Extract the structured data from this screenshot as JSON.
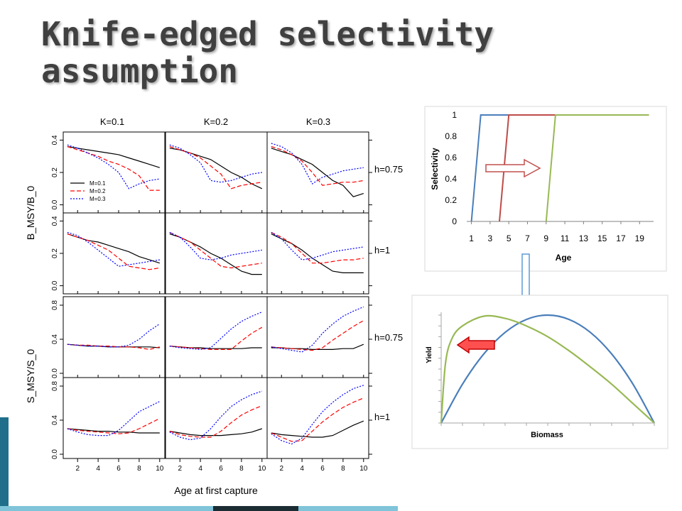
{
  "slide": {
    "title": "Knife-edged selectivity\nassumption",
    "colors": {
      "title": "#404040",
      "accent_left_bar": "#1f6f8b",
      "accent_bottom_bar": "#7fc4d8"
    }
  },
  "chart_data": [
    {
      "type": "line",
      "name": "panel_grid",
      "column_labels": [
        "K=0.1",
        "K=0.2",
        "K=0.3"
      ],
      "row_labels": [
        "h=0.75",
        "h=1",
        "h=0.75",
        "h=1"
      ],
      "ylabel_top": "B_MSY/B_0",
      "ylabel_bottom": "S_MSY/S_0",
      "xlabel": "Age at first capture",
      "x_ticks": [
        2,
        4,
        6,
        8,
        10
      ],
      "y_ticks_top": [
        "0.0",
        "0.2",
        "0.4"
      ],
      "y_ticks_bottom": [
        "0.0",
        "0.4",
        "0.8"
      ],
      "legend": [
        {
          "label": "M=0.1",
          "color": "#000000",
          "dash": "solid"
        },
        {
          "label": "M=0.2",
          "color": "#ff0000",
          "dash": "dashed"
        },
        {
          "label": "M=0.3",
          "color": "#0000ff",
          "dash": "dotted"
        }
      ],
      "x": [
        1,
        2,
        3,
        4,
        5,
        6,
        7,
        8,
        9,
        10
      ],
      "panels": [
        [
          {
            "ylim": [
              -0.05,
              0.45
            ],
            "series": [
              [
                0.36,
                0.35,
                0.34,
                0.33,
                0.32,
                0.31,
                0.29,
                0.27,
                0.25,
                0.23
              ],
              [
                0.36,
                0.34,
                0.32,
                0.3,
                0.27,
                0.25,
                0.22,
                0.18,
                0.09,
                0.09
              ],
              [
                0.37,
                0.35,
                0.32,
                0.29,
                0.25,
                0.2,
                0.1,
                0.13,
                0.15,
                0.16
              ]
            ]
          },
          {
            "ylim": [
              -0.05,
              0.45
            ],
            "series": [
              [
                0.35,
                0.34,
                0.32,
                0.3,
                0.28,
                0.24,
                0.2,
                0.17,
                0.13,
                0.1
              ],
              [
                0.36,
                0.34,
                0.32,
                0.29,
                0.24,
                0.19,
                0.1,
                0.12,
                0.13,
                0.14
              ],
              [
                0.37,
                0.35,
                0.31,
                0.26,
                0.15,
                0.14,
                0.15,
                0.17,
                0.19,
                0.2
              ]
            ]
          },
          {
            "ylim": [
              -0.05,
              0.45
            ],
            "series": [
              [
                0.35,
                0.33,
                0.31,
                0.28,
                0.25,
                0.2,
                0.15,
                0.12,
                0.05,
                0.07
              ],
              [
                0.36,
                0.34,
                0.31,
                0.27,
                0.2,
                0.12,
                0.13,
                0.14,
                0.14,
                0.15
              ],
              [
                0.38,
                0.36,
                0.32,
                0.25,
                0.13,
                0.17,
                0.19,
                0.21,
                0.22,
                0.23
              ]
            ]
          }
        ],
        [
          {
            "ylim": [
              -0.05,
              0.45
            ],
            "series": [
              [
                0.32,
                0.3,
                0.28,
                0.27,
                0.25,
                0.23,
                0.21,
                0.18,
                0.16,
                0.14
              ],
              [
                0.32,
                0.3,
                0.28,
                0.25,
                0.22,
                0.17,
                0.12,
                0.11,
                0.1,
                0.11
              ],
              [
                0.33,
                0.31,
                0.27,
                0.22,
                0.17,
                0.12,
                0.13,
                0.14,
                0.15,
                0.16
              ]
            ]
          },
          {
            "ylim": [
              -0.05,
              0.45
            ],
            "series": [
              [
                0.32,
                0.3,
                0.27,
                0.24,
                0.2,
                0.17,
                0.13,
                0.09,
                0.07,
                0.07
              ],
              [
                0.33,
                0.3,
                0.27,
                0.22,
                0.17,
                0.12,
                0.11,
                0.12,
                0.13,
                0.14
              ],
              [
                0.33,
                0.3,
                0.24,
                0.17,
                0.16,
                0.17,
                0.19,
                0.2,
                0.21,
                0.22
              ]
            ]
          },
          {
            "ylim": [
              -0.05,
              0.45
            ],
            "series": [
              [
                0.32,
                0.29,
                0.26,
                0.22,
                0.17,
                0.13,
                0.09,
                0.08,
                0.08,
                0.08
              ],
              [
                0.33,
                0.3,
                0.26,
                0.2,
                0.14,
                0.14,
                0.15,
                0.16,
                0.16,
                0.17
              ],
              [
                0.33,
                0.29,
                0.22,
                0.16,
                0.17,
                0.19,
                0.21,
                0.22,
                0.23,
                0.24
              ]
            ]
          }
        ],
        [
          {
            "ylim": [
              -0.05,
              0.9
            ],
            "series": [
              [
                0.34,
                0.33,
                0.32,
                0.32,
                0.31,
                0.31,
                0.31,
                0.31,
                0.31,
                0.3
              ],
              [
                0.34,
                0.33,
                0.33,
                0.32,
                0.32,
                0.31,
                0.31,
                0.3,
                0.28,
                0.31
              ],
              [
                0.34,
                0.33,
                0.32,
                0.32,
                0.31,
                0.31,
                0.33,
                0.4,
                0.5,
                0.58
              ]
            ]
          },
          {
            "ylim": [
              -0.05,
              0.9
            ],
            "series": [
              [
                0.32,
                0.31,
                0.3,
                0.3,
                0.29,
                0.29,
                0.29,
                0.29,
                0.3,
                0.3
              ],
              [
                0.32,
                0.31,
                0.3,
                0.29,
                0.28,
                0.28,
                0.28,
                0.38,
                0.47,
                0.54
              ],
              [
                0.32,
                0.3,
                0.29,
                0.28,
                0.3,
                0.41,
                0.52,
                0.61,
                0.67,
                0.72
              ]
            ]
          },
          {
            "ylim": [
              -0.05,
              0.9
            ],
            "series": [
              [
                0.3,
                0.3,
                0.29,
                0.29,
                0.28,
                0.28,
                0.28,
                0.29,
                0.29,
                0.34
              ],
              [
                0.31,
                0.3,
                0.29,
                0.28,
                0.27,
                0.3,
                0.39,
                0.47,
                0.55,
                0.62
              ],
              [
                0.31,
                0.29,
                0.27,
                0.25,
                0.33,
                0.47,
                0.58,
                0.67,
                0.73,
                0.78
              ]
            ]
          }
        ],
        [
          {
            "ylim": [
              -0.05,
              0.9
            ],
            "series": [
              [
                0.3,
                0.29,
                0.28,
                0.27,
                0.27,
                0.26,
                0.26,
                0.25,
                0.25,
                0.25
              ],
              [
                0.3,
                0.28,
                0.27,
                0.26,
                0.25,
                0.24,
                0.25,
                0.3,
                0.36,
                0.42
              ],
              [
                0.3,
                0.26,
                0.23,
                0.22,
                0.22,
                0.28,
                0.39,
                0.5,
                0.56,
                0.62
              ]
            ]
          },
          {
            "ylim": [
              -0.05,
              0.9
            ],
            "series": [
              [
                0.27,
                0.25,
                0.23,
                0.22,
                0.22,
                0.22,
                0.23,
                0.24,
                0.26,
                0.3
              ],
              [
                0.27,
                0.23,
                0.21,
                0.2,
                0.2,
                0.27,
                0.37,
                0.46,
                0.52,
                0.57
              ],
              [
                0.26,
                0.2,
                0.17,
                0.19,
                0.3,
                0.44,
                0.56,
                0.64,
                0.7,
                0.74
              ]
            ]
          },
          {
            "ylim": [
              -0.05,
              0.9
            ],
            "series": [
              [
                0.25,
                0.23,
                0.22,
                0.21,
                0.2,
                0.2,
                0.22,
                0.28,
                0.34,
                0.39
              ],
              [
                0.25,
                0.2,
                0.15,
                0.16,
                0.27,
                0.38,
                0.47,
                0.55,
                0.61,
                0.66
              ],
              [
                0.24,
                0.16,
                0.12,
                0.19,
                0.35,
                0.5,
                0.61,
                0.7,
                0.77,
                0.81
              ]
            ]
          }
        ]
      ]
    },
    {
      "type": "line",
      "name": "selectivity",
      "ylabel": "Selectivity",
      "xlabel": "Age",
      "x_tick_labels": [
        "1",
        "3",
        "5",
        "7",
        "9",
        "11",
        "13",
        "15",
        "17",
        "19"
      ],
      "y_tick_labels": [
        "0",
        "0.2",
        "0.4",
        "0.6",
        "0.8",
        "1"
      ],
      "ylim": [
        0,
        1
      ],
      "xlim": [
        0.5,
        20.5
      ],
      "series": [
        {
          "color": "#4a7ebb",
          "x": [
            1,
            2,
            20
          ],
          "y": [
            0,
            1,
            1
          ]
        },
        {
          "color": "#be4b48",
          "x": [
            4,
            5,
            20
          ],
          "y": [
            0,
            1,
            1
          ]
        },
        {
          "color": "#98b954",
          "x": [
            9,
            10,
            20
          ],
          "y": [
            0,
            1,
            1
          ]
        }
      ]
    },
    {
      "type": "line",
      "name": "yield_biomass",
      "xlabel": "Biomass",
      "ylabel": "Yield",
      "xlim": [
        0,
        1
      ],
      "ylim": [
        0,
        1
      ],
      "series": [
        {
          "color": "#4a7ebb",
          "x": [
            0,
            0.1,
            0.2,
            0.3,
            0.4,
            0.5,
            0.6,
            0.7,
            0.8,
            0.9,
            1.0
          ],
          "y": [
            0,
            0.36,
            0.64,
            0.84,
            0.96,
            1.0,
            0.96,
            0.84,
            0.64,
            0.36,
            0
          ]
        },
        {
          "color": "#98b954",
          "x": [
            0,
            0.02,
            0.05,
            0.1,
            0.2,
            0.3,
            0.4,
            0.5,
            0.6,
            0.7,
            0.8,
            0.9,
            1.0
          ],
          "y": [
            0,
            0.55,
            0.78,
            0.9,
            0.99,
            0.97,
            0.9,
            0.8,
            0.67,
            0.52,
            0.36,
            0.18,
            0
          ]
        }
      ]
    }
  ]
}
